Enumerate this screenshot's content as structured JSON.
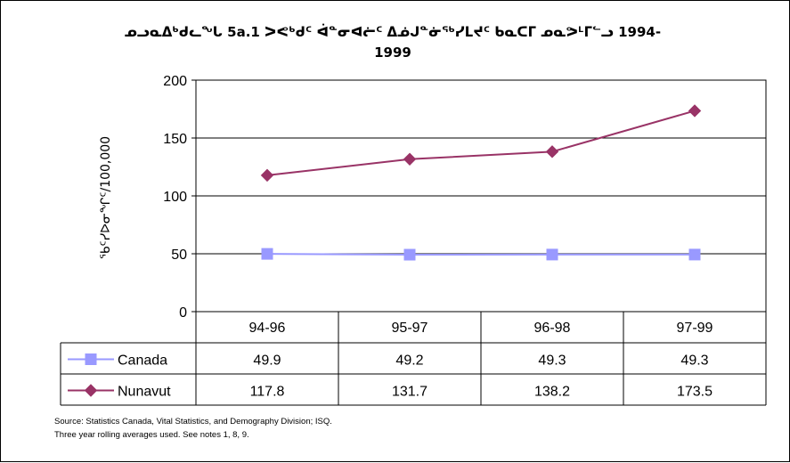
{
  "chart_data": {
    "type": "line",
    "title_line1": "ᓄᓗᓇᐃᒃᑯᓚᖓ 5a.1 ᐳᕙᒃᑯᑦ ᐋᓐᓂᐊᓖᑦ ᐃᓅᒍᓐᓃᖅᓯᒪᔪᑦ ᑲᓇᑕᒥ ᓄᓇᕗᒻᒥᓪᓗ 1994-",
    "title_line2": "1999",
    "ylabel": "ᖃᑦᓯᐅᓂᖏᑦ/100,000",
    "ylim": [
      0,
      200
    ],
    "yticks": [
      0,
      50,
      100,
      150,
      200
    ],
    "grid": true,
    "categories": [
      "94-96",
      "95-97",
      "96-98",
      "97-99"
    ],
    "series": [
      {
        "name": "Canada",
        "values": [
          49.9,
          49.2,
          49.3,
          49.3
        ],
        "color": "#9999ff",
        "marker": "square"
      },
      {
        "name": "Nunavut",
        "values": [
          117.8,
          131.7,
          138.2,
          173.5
        ],
        "color": "#993366",
        "marker": "diamond"
      }
    ],
    "table_values": [
      [
        "49.9",
        "49.2",
        "49.3",
        "49.3"
      ],
      [
        "117.8",
        "131.7",
        "138.2",
        "173.5"
      ]
    ]
  },
  "source_line1": "Source: Statistics Canada, Vital Statistics, and Demography Division; ISQ.",
  "source_line2": "Three year rolling averages used. See notes 1, 8, 9."
}
